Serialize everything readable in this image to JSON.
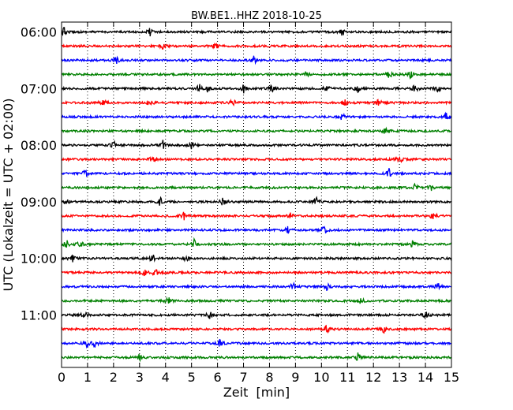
{
  "chart_data": {
    "type": "line",
    "title": "BW.BE1..HHZ 2018-10-25",
    "xlabel": "Zeit  [min]",
    "ylabel": "UTC (Lokalzeit = UTC + 02:00)",
    "xlim": [
      0,
      15
    ],
    "xticks": [
      "0",
      "1",
      "2",
      "3",
      "4",
      "5",
      "6",
      "7",
      "8",
      "9",
      "10",
      "11",
      "12",
      "13",
      "14",
      "15"
    ],
    "ytick_labels": [
      "06:00",
      "07:00",
      "08:00",
      "09:00",
      "10:00",
      "11:00"
    ],
    "row_interval_min": 15,
    "rows": 24,
    "grid": "vertical dotted",
    "trace_colors": [
      "#000000",
      "#ff0000",
      "#0000ff",
      "#008000"
    ],
    "series": [
      {
        "start": "06:00",
        "events": [
          0.1,
          3.4,
          10.8
        ]
      },
      {
        "start": "06:15",
        "events": [
          3.9,
          5.9
        ]
      },
      {
        "start": "06:30",
        "events": [
          2.1,
          7.4
        ]
      },
      {
        "start": "06:45",
        "events": [
          9.4,
          12.6,
          13.4
        ]
      },
      {
        "start": "07:00",
        "events": [
          5.3,
          5.6,
          7.0,
          8.1,
          10.2,
          11.4,
          13.6,
          14.5
        ]
      },
      {
        "start": "07:15",
        "events": [
          1.6,
          3.4,
          6.6,
          10.9,
          12.2
        ]
      },
      {
        "start": "07:30",
        "events": [
          10.8,
          14.8
        ]
      },
      {
        "start": "07:45",
        "events": [
          12.5
        ]
      },
      {
        "start": "08:00",
        "events": [
          2.0,
          3.9,
          5.0
        ]
      },
      {
        "start": "08:15",
        "events": [
          3.5,
          13.0
        ]
      },
      {
        "start": "08:30",
        "events": [
          0.9,
          12.6
        ]
      },
      {
        "start": "08:45",
        "events": [
          13.6,
          14.2
        ]
      },
      {
        "start": "09:00",
        "events": [
          0.2,
          3.8,
          6.2,
          9.8
        ]
      },
      {
        "start": "09:15",
        "events": [
          4.7,
          8.8,
          14.3
        ]
      },
      {
        "start": "09:30",
        "events": [
          8.7,
          10.1
        ]
      },
      {
        "start": "09:45",
        "events": [
          0.2,
          0.7,
          5.1,
          13.5
        ]
      },
      {
        "start": "10:00",
        "events": [
          0.4,
          3.5,
          4.8
        ]
      },
      {
        "start": "10:15",
        "events": [
          3.2,
          3.6
        ]
      },
      {
        "start": "10:30",
        "events": [
          8.9,
          10.2,
          14.5
        ]
      },
      {
        "start": "10:45",
        "events": [
          4.1,
          11.5
        ]
      },
      {
        "start": "11:00",
        "events": [
          0.9,
          5.7,
          14.0
        ]
      },
      {
        "start": "11:15",
        "events": [
          10.2,
          12.4
        ]
      },
      {
        "start": "11:30",
        "events": [
          1.0,
          1.3,
          6.1
        ]
      },
      {
        "start": "11:45",
        "events": [
          3.0,
          11.4
        ]
      }
    ]
  }
}
